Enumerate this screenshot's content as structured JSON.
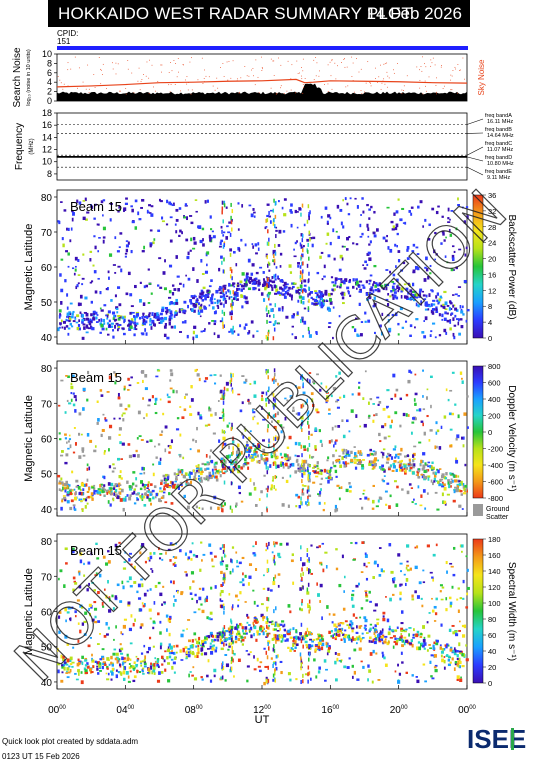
{
  "header": {
    "title": "HOKKAIDO WEST RADAR SUMMARY PLOT",
    "date": "14 Feb 2026"
  },
  "cpid": {
    "label": "CPID:",
    "value": "151"
  },
  "watermark": "NOT FOR PUBLICATION",
  "footer": {
    "credit": "Quick look plot created by sddata.adm",
    "timestamp": "0123 UT 15 Feb 2026"
  },
  "logo_text": "ISEE",
  "colors": {
    "blue_bar": "#1f1fff",
    "noise_curve": "#e8431a",
    "sky_noise_label": "#e8431a"
  },
  "chart_data": [
    {
      "type": "area",
      "ylabel": "Search Noise",
      "ylabel_sub": "log₁₀ (noise in 10 units)",
      "ylim": [
        0,
        10
      ],
      "yticks": [
        0,
        2,
        4,
        6,
        8,
        10
      ],
      "legend": "Sky Noise",
      "x_hours": [
        0,
        2,
        4,
        6,
        8,
        10,
        12,
        14,
        14.5,
        15,
        16,
        18,
        20,
        22,
        24
      ],
      "series": [
        {
          "name": "Sky Noise",
          "values": [
            3.0,
            3.2,
            3.5,
            3.9,
            4.0,
            4.2,
            4.3,
            4.6,
            3.9,
            4.0,
            4.3,
            4.2,
            4.1,
            3.9,
            3.8
          ]
        }
      ]
    },
    {
      "type": "line",
      "ylabel": "Frequency",
      "ylabel_sub": "(MHz)",
      "ylim": [
        7,
        18
      ],
      "yticks": [
        8,
        10,
        12,
        14,
        16,
        18
      ],
      "bands": [
        {
          "label": "freq bandA",
          "value": "16.11 MHz",
          "freq": 16.11
        },
        {
          "label": "freq bandB",
          "value": "14.64 MHz",
          "freq": 14.64
        },
        {
          "label": "freq bandC",
          "value": "11.07 MHz",
          "freq": 11.07
        },
        {
          "label": "freq bandD",
          "value": "10.80 MHz",
          "freq": 10.8
        },
        {
          "label": "freq bandE",
          "value": "9.11 MHz",
          "freq": 9.11
        }
      ]
    },
    {
      "type": "heatmap",
      "beam": "Beam 15",
      "ylabel": "Magnetic Latitude",
      "ylim": [
        38,
        82
      ],
      "yticks": [
        40,
        50,
        60,
        70,
        80
      ],
      "colorbar_label": "Backscatter Power (dB)",
      "colorbar_ticks": [
        0,
        4,
        8,
        12,
        16,
        20,
        24,
        28,
        32,
        36
      ],
      "colorbar_range": [
        0,
        36
      ]
    },
    {
      "type": "heatmap",
      "beam": "Beam 15",
      "ylabel": "Magnetic Latitude",
      "ylim": [
        38,
        82
      ],
      "yticks": [
        40,
        50,
        60,
        70,
        80
      ],
      "colorbar_label": "Doppler Velocity (m s⁻¹)",
      "colorbar_ticks": [
        800,
        600,
        400,
        200,
        0,
        -200,
        -400,
        -600,
        -800
      ],
      "colorbar_range": [
        -800,
        800
      ],
      "ground_scatter_label": "Ground Scatter"
    },
    {
      "type": "heatmap",
      "beam": "Beam 15",
      "ylabel": "Magnetic Latitude",
      "ylim": [
        38,
        82
      ],
      "yticks": [
        40,
        50,
        60,
        70,
        80
      ],
      "colorbar_label": "Spectral Width (m s⁻¹)",
      "colorbar_ticks": [
        0,
        20,
        40,
        60,
        80,
        100,
        120,
        140,
        160,
        180
      ],
      "colorbar_range": [
        0,
        180
      ]
    }
  ],
  "x_axis": {
    "label": "UT",
    "ticks": [
      {
        "hour": 0,
        "text": "00",
        "sup": "00"
      },
      {
        "hour": 4,
        "text": "04",
        "sup": "00"
      },
      {
        "hour": 8,
        "text": "08",
        "sup": "00"
      },
      {
        "hour": 12,
        "text": "12",
        "sup": "00"
      },
      {
        "hour": 16,
        "text": "16",
        "sup": "00"
      },
      {
        "hour": 20,
        "text": "20",
        "sup": "00"
      },
      {
        "hour": 24,
        "text": "00",
        "sup": "00"
      }
    ]
  }
}
